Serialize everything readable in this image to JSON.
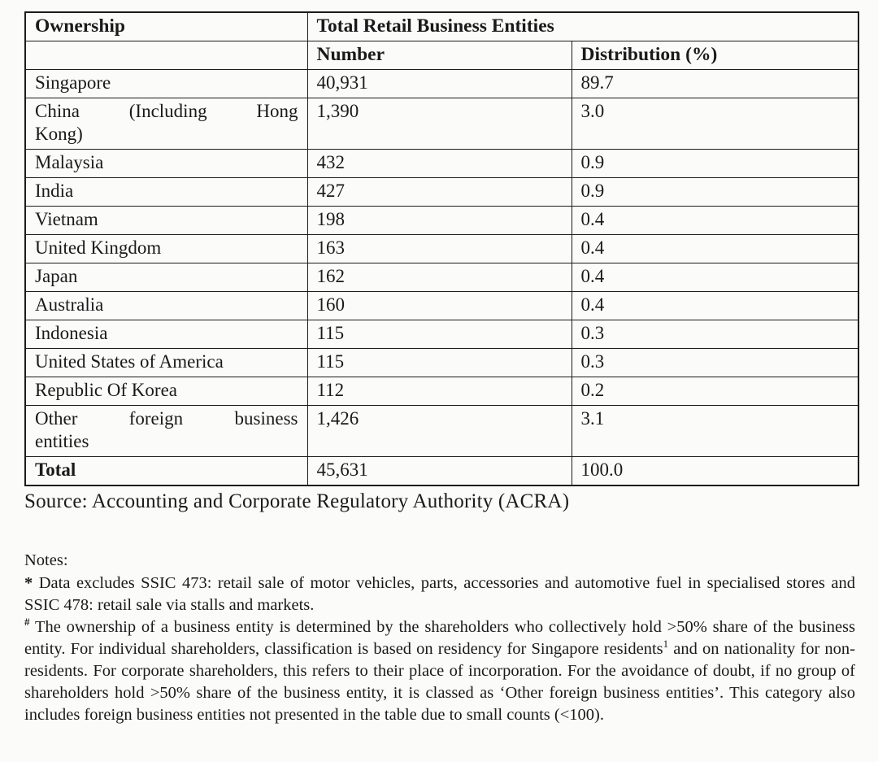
{
  "table": {
    "header": {
      "ownership": "Ownership",
      "group": "Total Retail Business Entities",
      "number": "Number",
      "distribution": "Distribution (%)"
    },
    "rows": [
      {
        "ownership": "Singapore",
        "number": "40,931",
        "distribution": "89.7"
      },
      {
        "ownership": "China (Including Hong\nKong)",
        "number": "1,390",
        "distribution": "3.0"
      },
      {
        "ownership": "Malaysia",
        "number": "432",
        "distribution": "0.9"
      },
      {
        "ownership": "India",
        "number": "427",
        "distribution": "0.9"
      },
      {
        "ownership": "Vietnam",
        "number": "198",
        "distribution": "0.4"
      },
      {
        "ownership": "United Kingdom",
        "number": "163",
        "distribution": "0.4"
      },
      {
        "ownership": "Japan",
        "number": "162",
        "distribution": "0.4"
      },
      {
        "ownership": "Australia",
        "number": "160",
        "distribution": "0.4"
      },
      {
        "ownership": "Indonesia",
        "number": "115",
        "distribution": "0.3"
      },
      {
        "ownership": "United States of America",
        "number": "115",
        "distribution": "0.3"
      },
      {
        "ownership": "Republic Of Korea",
        "number": "112",
        "distribution": "0.2"
      },
      {
        "ownership": "Other foreign business\nentities",
        "number": "1,426",
        "distribution": "3.1"
      }
    ],
    "total_row": {
      "ownership": "Total",
      "number": "45,631",
      "distribution": "100.0"
    }
  },
  "source_line": "Source: Accounting and Corporate Regulatory Authority (ACRA)",
  "notes": {
    "heading": "Notes:",
    "note1": {
      "marker": "*",
      "text": " Data excludes SSIC 473: retail sale of motor vehicles, parts, accessories and automotive fuel in specialised stores and SSIC 478: retail sale via stalls and markets."
    },
    "note2": {
      "marker": "#",
      "text_before_sup": " The ownership of a business entity is determined by the shareholders who collectively hold >50% share of the business entity. For individual shareholders, classification is based on residency for Singapore residents",
      "sup": "1",
      "text_after_sup": " and on nationality for non-residents. For corporate shareholders, this refers to their place of incorporation. For the avoidance of doubt, if no group of shareholders hold >50% share of the business entity, it is classed as ‘Other foreign business entities’. This category also includes foreign business entities not presented in the table due to small counts (<100)."
    }
  },
  "colors": {
    "background": "#fbfbfa",
    "border": "#1c1c1c",
    "text": "#1a1a1a"
  }
}
